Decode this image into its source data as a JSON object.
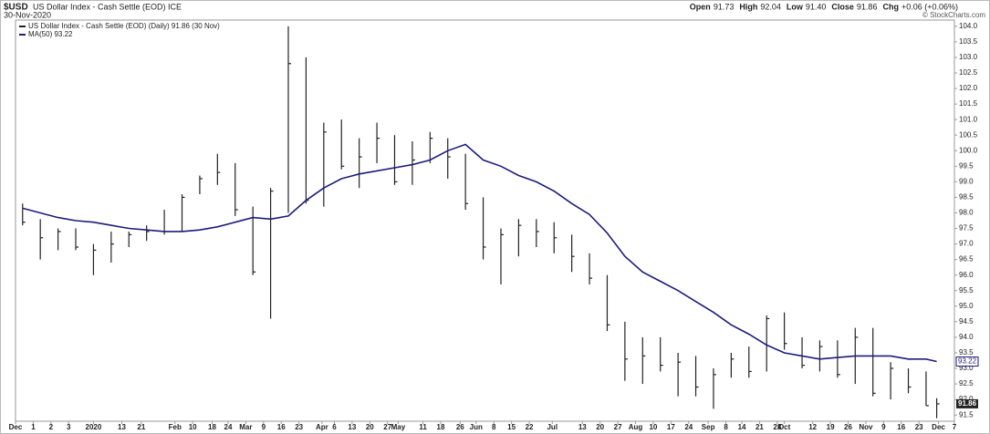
{
  "chart_data": {
    "type": "hlc",
    "title": "$USD",
    "subtitle": "US Dollar Index - Cash Settle (EOD) ICE",
    "date": "30-Nov-2020",
    "quote": [
      {
        "label": "Open",
        "value": "91.73"
      },
      {
        "label": "High",
        "value": "92.04"
      },
      {
        "label": "Low",
        "value": "91.40"
      },
      {
        "label": "Close",
        "value": "91.86"
      },
      {
        "label": "Chg",
        "value": "+0.06 (+0.06%)"
      }
    ],
    "credit": "© StockCharts.com",
    "x": [
      0.4,
      1.4,
      2.4,
      3.4,
      4.4,
      5.4,
      6.4,
      7.4,
      8.4,
      9.4,
      10.4,
      11.4,
      12.4,
      13.4,
      14.4,
      15.4,
      16.4,
      17.4,
      18.4,
      19.4,
      20.4,
      21.4,
      22.4,
      23.4,
      24.4,
      25.4,
      26.4,
      27.4,
      28.4,
      29.4,
      30.4,
      31.4,
      32.4,
      33.4,
      34.4,
      35.4,
      36.4,
      37.4,
      38.4,
      39.4,
      40.4,
      41.4,
      42.4,
      43.4,
      44.4,
      45.4,
      46.4,
      47.4,
      48.4,
      49.4,
      50.4,
      51.4,
      52.0
    ],
    "xlim": [
      0,
      53
    ],
    "xticks": [
      {
        "value": 0,
        "label": "Dec"
      },
      1,
      2,
      3,
      {
        "value": 4.4,
        "label": "2020"
      },
      {
        "value": 6,
        "label": "13"
      },
      {
        "value": 7.1,
        "label": "21"
      },
      {
        "value": 9,
        "label": "Feb"
      },
      {
        "value": 10,
        "label": "10"
      },
      {
        "value": 11.1,
        "label": "18"
      },
      {
        "value": 12,
        "label": "24"
      },
      {
        "value": 13,
        "label": "Mar"
      },
      {
        "value": 14,
        "label": "9"
      },
      {
        "value": 15,
        "label": "16"
      },
      {
        "value": 16,
        "label": "23"
      },
      {
        "value": 17.3,
        "label": "Apr"
      },
      {
        "value": 18,
        "label": "6"
      },
      {
        "value": 19,
        "label": "13"
      },
      {
        "value": 20,
        "label": "20"
      },
      {
        "value": 21,
        "label": "27"
      },
      {
        "value": 21.6,
        "label": "May"
      },
      {
        "value": 23,
        "label": "11"
      },
      {
        "value": 24,
        "label": "18"
      },
      {
        "value": 25.1,
        "label": "26"
      },
      {
        "value": 26,
        "label": "Jun"
      },
      {
        "value": 27,
        "label": "8"
      },
      {
        "value": 28,
        "label": "15"
      },
      {
        "value": 29,
        "label": "22"
      },
      {
        "value": 30.3,
        "label": "Jul"
      },
      {
        "value": 32,
        "label": "13"
      },
      {
        "value": 33,
        "label": "20"
      },
      {
        "value": 34,
        "label": "27"
      },
      {
        "value": 35,
        "label": "Aug"
      },
      {
        "value": 36,
        "label": "10"
      },
      {
        "value": 37,
        "label": "17"
      },
      {
        "value": 38,
        "label": "24"
      },
      {
        "value": 39.1,
        "label": "Sep"
      },
      {
        "value": 40.1,
        "label": "8"
      },
      {
        "value": 41,
        "label": "14"
      },
      {
        "value": 42,
        "label": "21"
      },
      {
        "value": 43,
        "label": "28"
      },
      {
        "value": 43.4,
        "label": "Oct"
      },
      {
        "value": 45,
        "label": "12"
      },
      {
        "value": 46,
        "label": "19"
      },
      {
        "value": 47,
        "label": "26"
      },
      {
        "value": 48,
        "label": "Nov"
      },
      {
        "value": 49,
        "label": "9"
      },
      {
        "value": 50,
        "label": "16"
      },
      {
        "value": 51,
        "label": "23"
      },
      {
        "value": 52.1,
        "label": "Dec"
      },
      {
        "value": 53,
        "label": "7"
      }
    ],
    "ylim": [
      91.3,
      104.2
    ],
    "yticks": [
      91.5,
      {
        "value": 92,
        "label": "92.0"
      },
      92.5,
      {
        "value": 93,
        "label": "93.0"
      },
      93.5,
      {
        "value": 94,
        "label": "94.0"
      },
      94.5,
      {
        "value": 95,
        "label": "95.0"
      },
      95.5,
      {
        "value": 96,
        "label": "96.0"
      },
      96.5,
      {
        "value": 97,
        "label": "97.0"
      },
      97.5,
      {
        "value": 98,
        "label": "98.0"
      },
      98.5,
      {
        "value": 99,
        "label": "99.0"
      },
      99.5,
      {
        "value": 100,
        "label": "100.0"
      },
      100.5,
      {
        "value": 101,
        "label": "101.0"
      },
      101.5,
      {
        "value": 102,
        "label": "102.0"
      },
      102.5,
      {
        "value": 103,
        "label": "103.0"
      },
      103.5,
      {
        "value": 104,
        "label": "104.0"
      }
    ],
    "series": [
      {
        "name": "US Dollar Index - Cash Settle (EOD) (Daily) 91.86 (30 Nov)",
        "color": "#222222",
        "high": [
          98.3,
          97.8,
          97.5,
          97.5,
          97.0,
          97.4,
          97.4,
          97.6,
          98.1,
          98.6,
          99.2,
          99.9,
          99.6,
          98.2,
          98.8,
          104.0,
          103.0,
          100.9,
          101.0,
          100.4,
          100.9,
          100.5,
          100.3,
          100.6,
          100.4,
          99.9,
          98.5,
          97.5,
          97.8,
          97.8,
          97.7,
          97.3,
          96.7,
          96.0,
          94.5,
          94.0,
          94.0,
          93.5,
          93.4,
          93.0,
          93.5,
          93.7,
          94.7,
          94.8,
          94.0,
          93.9,
          93.9,
          94.3,
          94.3,
          93.2,
          93.0,
          92.9,
          92.04
        ],
        "low": [
          97.6,
          96.5,
          96.8,
          96.8,
          96.0,
          96.4,
          96.9,
          97.1,
          97.3,
          97.4,
          98.6,
          98.9,
          97.9,
          96.0,
          94.6,
          98.0,
          98.3,
          98.2,
          99.4,
          98.8,
          99.6,
          98.9,
          98.9,
          99.6,
          99.1,
          98.1,
          96.5,
          95.7,
          96.6,
          96.9,
          96.7,
          96.1,
          95.7,
          94.2,
          92.6,
          92.5,
          92.9,
          92.1,
          92.1,
          91.7,
          92.7,
          92.7,
          92.9,
          93.6,
          93.0,
          92.9,
          92.7,
          92.5,
          92.1,
          92.0,
          92.2,
          91.8,
          91.4
        ],
        "close": [
          97.7,
          97.2,
          97.4,
          96.9,
          96.8,
          97.0,
          97.3,
          97.4,
          97.4,
          98.5,
          99.1,
          99.3,
          98.1,
          96.1,
          98.7,
          102.8,
          98.4,
          100.6,
          99.5,
          99.8,
          100.4,
          99.0,
          99.7,
          100.4,
          99.8,
          98.3,
          96.9,
          97.3,
          97.6,
          97.4,
          97.2,
          96.6,
          95.9,
          94.4,
          93.3,
          93.4,
          93.1,
          93.2,
          92.4,
          92.8,
          93.3,
          92.9,
          94.6,
          93.8,
          93.1,
          93.7,
          92.8,
          94.0,
          92.2,
          93.0,
          92.4,
          91.8,
          91.86
        ]
      },
      {
        "name": "MA(50) 93.22",
        "color": "#1c1c7c",
        "values": [
          98.15,
          98.0,
          97.85,
          97.75,
          97.7,
          97.6,
          97.5,
          97.45,
          97.4,
          97.4,
          97.45,
          97.55,
          97.7,
          97.85,
          97.8,
          97.9,
          98.4,
          98.8,
          99.1,
          99.25,
          99.35,
          99.45,
          99.55,
          99.7,
          100.0,
          100.2,
          99.7,
          99.5,
          99.2,
          99.0,
          98.7,
          98.3,
          97.95,
          97.35,
          96.6,
          96.1,
          95.8,
          95.5,
          95.15,
          94.8,
          94.4,
          94.1,
          93.75,
          93.5,
          93.4,
          93.3,
          93.35,
          93.4,
          93.4,
          93.4,
          93.3,
          93.3,
          93.22
        ]
      }
    ]
  }
}
